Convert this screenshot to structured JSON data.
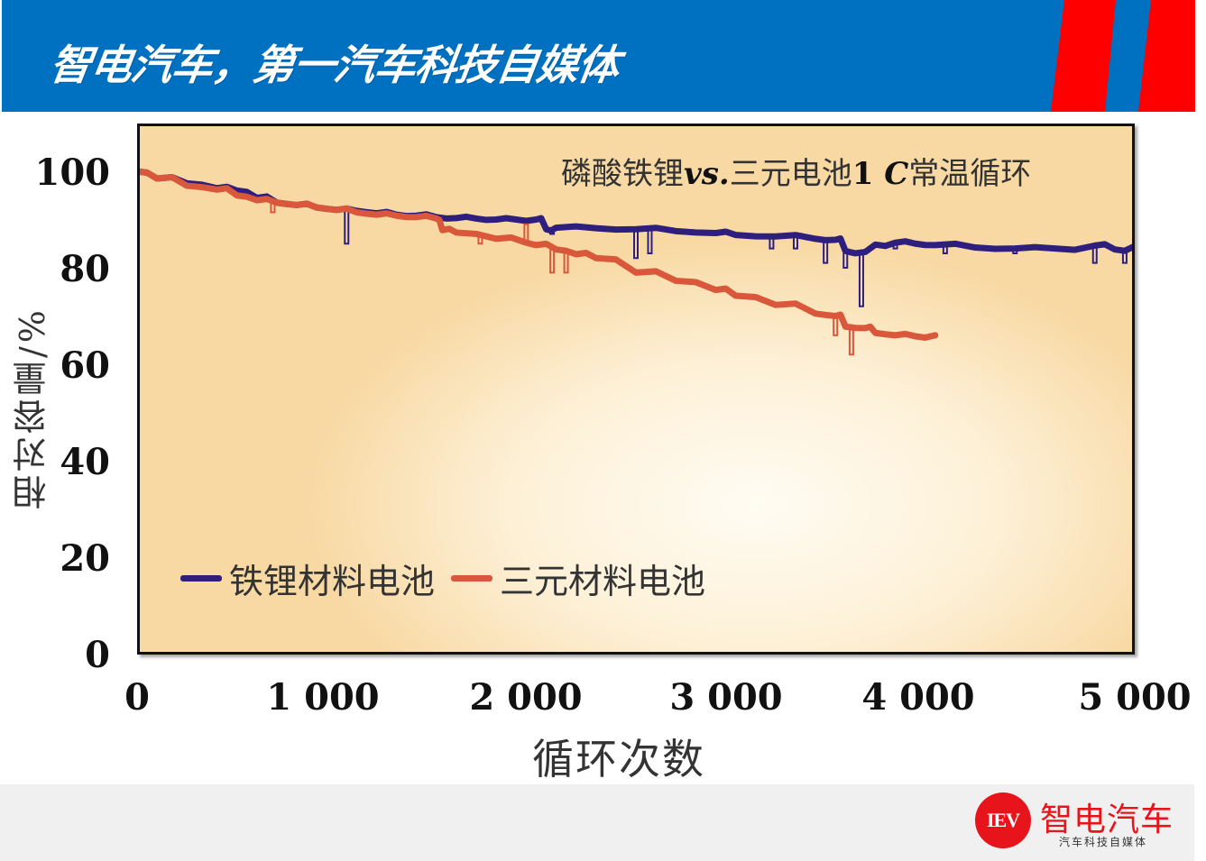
{
  "header": {
    "title": "智电汽车，第一汽车科技自媒体",
    "bg_color": "#0070c0",
    "stripe_color": "#ff0000"
  },
  "chart_data": {
    "type": "line",
    "title": "磷酸铁锂vs.三元电池1 C常温循环",
    "title_parts": {
      "prefix": "磷酸铁锂",
      "vs": "vs.",
      "middle": "三元电池",
      "rate": "1 ",
      "c": "C",
      "suffix": "常温循环"
    },
    "xlabel": "循环次数",
    "ylabel": "相对容量/%",
    "xlim": [
      0,
      5000
    ],
    "ylim": [
      0,
      100
    ],
    "x_ticks": [
      "0",
      "1 000",
      "2 000",
      "3 000",
      "4 000",
      "5 000"
    ],
    "x_tick_values": [
      0,
      1000,
      2000,
      3000,
      4000,
      5000
    ],
    "y_ticks": [
      "100",
      "80",
      "60",
      "40",
      "20",
      "0"
    ],
    "y_tick_values": [
      100,
      80,
      60,
      40,
      20,
      0
    ],
    "grid": false,
    "legend_position": "lower-left inside",
    "series": [
      {
        "name": "铁锂材料电池",
        "color": "#2e1f7e",
        "x": [
          0,
          100,
          250,
          400,
          500,
          600,
          700,
          800,
          900,
          1000,
          1100,
          1200,
          1300,
          1400,
          1500,
          1600,
          1700,
          1800,
          1900,
          2000,
          2050,
          2100,
          2300,
          2500,
          2700,
          2900,
          3000,
          3200,
          3400,
          3500,
          3550,
          3600,
          3700,
          3800,
          3900,
          4000,
          4200,
          4400,
          4600,
          4800,
          4900,
          5000
        ],
        "values": [
          100,
          98.5,
          97.5,
          96.5,
          96,
          94.5,
          93.5,
          93,
          92.5,
          92,
          91.8,
          91.3,
          91,
          90.8,
          90.5,
          90.3,
          90.2,
          90,
          90,
          90,
          88,
          88.3,
          88.2,
          88,
          87.6,
          87.2,
          86.8,
          86.5,
          86,
          85.8,
          83.5,
          83,
          84.8,
          85.2,
          85,
          84.7,
          84.2,
          84,
          84,
          84.6,
          83.8,
          84.5
        ],
        "dips": [
          {
            "x": 1050,
            "y": 85
          },
          {
            "x": 2080,
            "y": 87
          },
          {
            "x": 2500,
            "y": 82
          },
          {
            "x": 2570,
            "y": 83
          },
          {
            "x": 3180,
            "y": 84
          },
          {
            "x": 3300,
            "y": 84
          },
          {
            "x": 3450,
            "y": 81
          },
          {
            "x": 3550,
            "y": 80
          },
          {
            "x": 3630,
            "y": 72
          },
          {
            "x": 3800,
            "y": 84
          },
          {
            "x": 4050,
            "y": 83
          },
          {
            "x": 4400,
            "y": 83
          },
          {
            "x": 4800,
            "y": 81
          },
          {
            "x": 4950,
            "y": 81
          }
        ]
      },
      {
        "name": "三元材料电池",
        "color": "#d9573a",
        "x": [
          0,
          100,
          250,
          400,
          500,
          600,
          700,
          800,
          900,
          1000,
          1100,
          1200,
          1300,
          1400,
          1500,
          1530,
          1600,
          1800,
          1950,
          2000,
          2100,
          2200,
          2300,
          2500,
          2700,
          2900,
          3000,
          3200,
          3400,
          3500,
          3550,
          3650,
          3700,
          3800,
          3900,
          4000
        ],
        "values": [
          100,
          98.5,
          97,
          96.2,
          95,
          94,
          93.5,
          93,
          92.5,
          92,
          91.5,
          91,
          90.8,
          90.5,
          90.2,
          87.8,
          87.3,
          86,
          85.2,
          84.7,
          83.8,
          82.8,
          82,
          79,
          77.3,
          75.4,
          74.2,
          72.3,
          70.5,
          70,
          67.8,
          67.5,
          66.5,
          66,
          65.8,
          66
        ],
        "dips": [
          {
            "x": 680,
            "y": 91.5
          },
          {
            "x": 1720,
            "y": 85
          },
          {
            "x": 1950,
            "y": 89
          },
          {
            "x": 2080,
            "y": 79
          },
          {
            "x": 2150,
            "y": 79
          },
          {
            "x": 3500,
            "y": 66
          },
          {
            "x": 3580,
            "y": 62
          }
        ]
      }
    ]
  },
  "footer": {
    "logo_badge": "IEV",
    "logo_name": "智电汽车",
    "logo_tagline": "汽车科技自媒体",
    "logo_color": "#e8141b"
  }
}
